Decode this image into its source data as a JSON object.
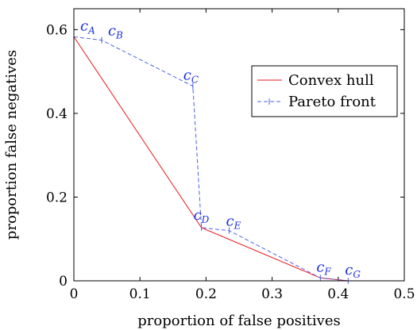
{
  "chart_data": {
    "type": "line",
    "title": "",
    "xlabel": "proportion of false positives",
    "ylabel": "proportion false negatives",
    "xlim": [
      0,
      0.5
    ],
    "ylim": [
      0,
      0.65
    ],
    "xticks": [
      "0",
      "0.1",
      "0.2",
      "0.3",
      "0.4",
      "0.5"
    ],
    "xtick_values": [
      0,
      0.1,
      0.2,
      0.3,
      0.4,
      0.5
    ],
    "yticks": [
      "0",
      "0.2",
      "0.4",
      "0.6"
    ],
    "ytick_values": [
      0,
      0.2,
      0.4,
      0.6
    ],
    "grid": false,
    "legend_position": "top-right",
    "series": [
      {
        "name": "Convex hull",
        "color": "#e8191f",
        "style": "solid",
        "x": [
          0,
          0.193,
          0.373,
          0.415
        ],
        "y": [
          0.583,
          0.127,
          0.007,
          0.0
        ]
      },
      {
        "name": "Pareto front",
        "color": "#5060e8",
        "style": "dashed",
        "x": [
          0,
          0.042,
          0.18,
          0.193,
          0.235,
          0.373,
          0.415
        ],
        "y": [
          0.583,
          0.575,
          0.465,
          0.127,
          0.12,
          0.007,
          0.0
        ]
      }
    ],
    "annotations": [
      {
        "base": "c",
        "sub": "A",
        "x": 0,
        "y": 0.583
      },
      {
        "base": "c",
        "sub": "B",
        "x": 0.042,
        "y": 0.575
      },
      {
        "base": "c",
        "sub": "C",
        "x": 0.18,
        "y": 0.465
      },
      {
        "base": "c",
        "sub": "D",
        "x": 0.193,
        "y": 0.127
      },
      {
        "base": "c",
        "sub": "E",
        "x": 0.235,
        "y": 0.12
      },
      {
        "base": "c",
        "sub": "F",
        "x": 0.373,
        "y": 0.007
      },
      {
        "base": "c",
        "sub": "G",
        "x": 0.415,
        "y": 0.0
      }
    ]
  }
}
